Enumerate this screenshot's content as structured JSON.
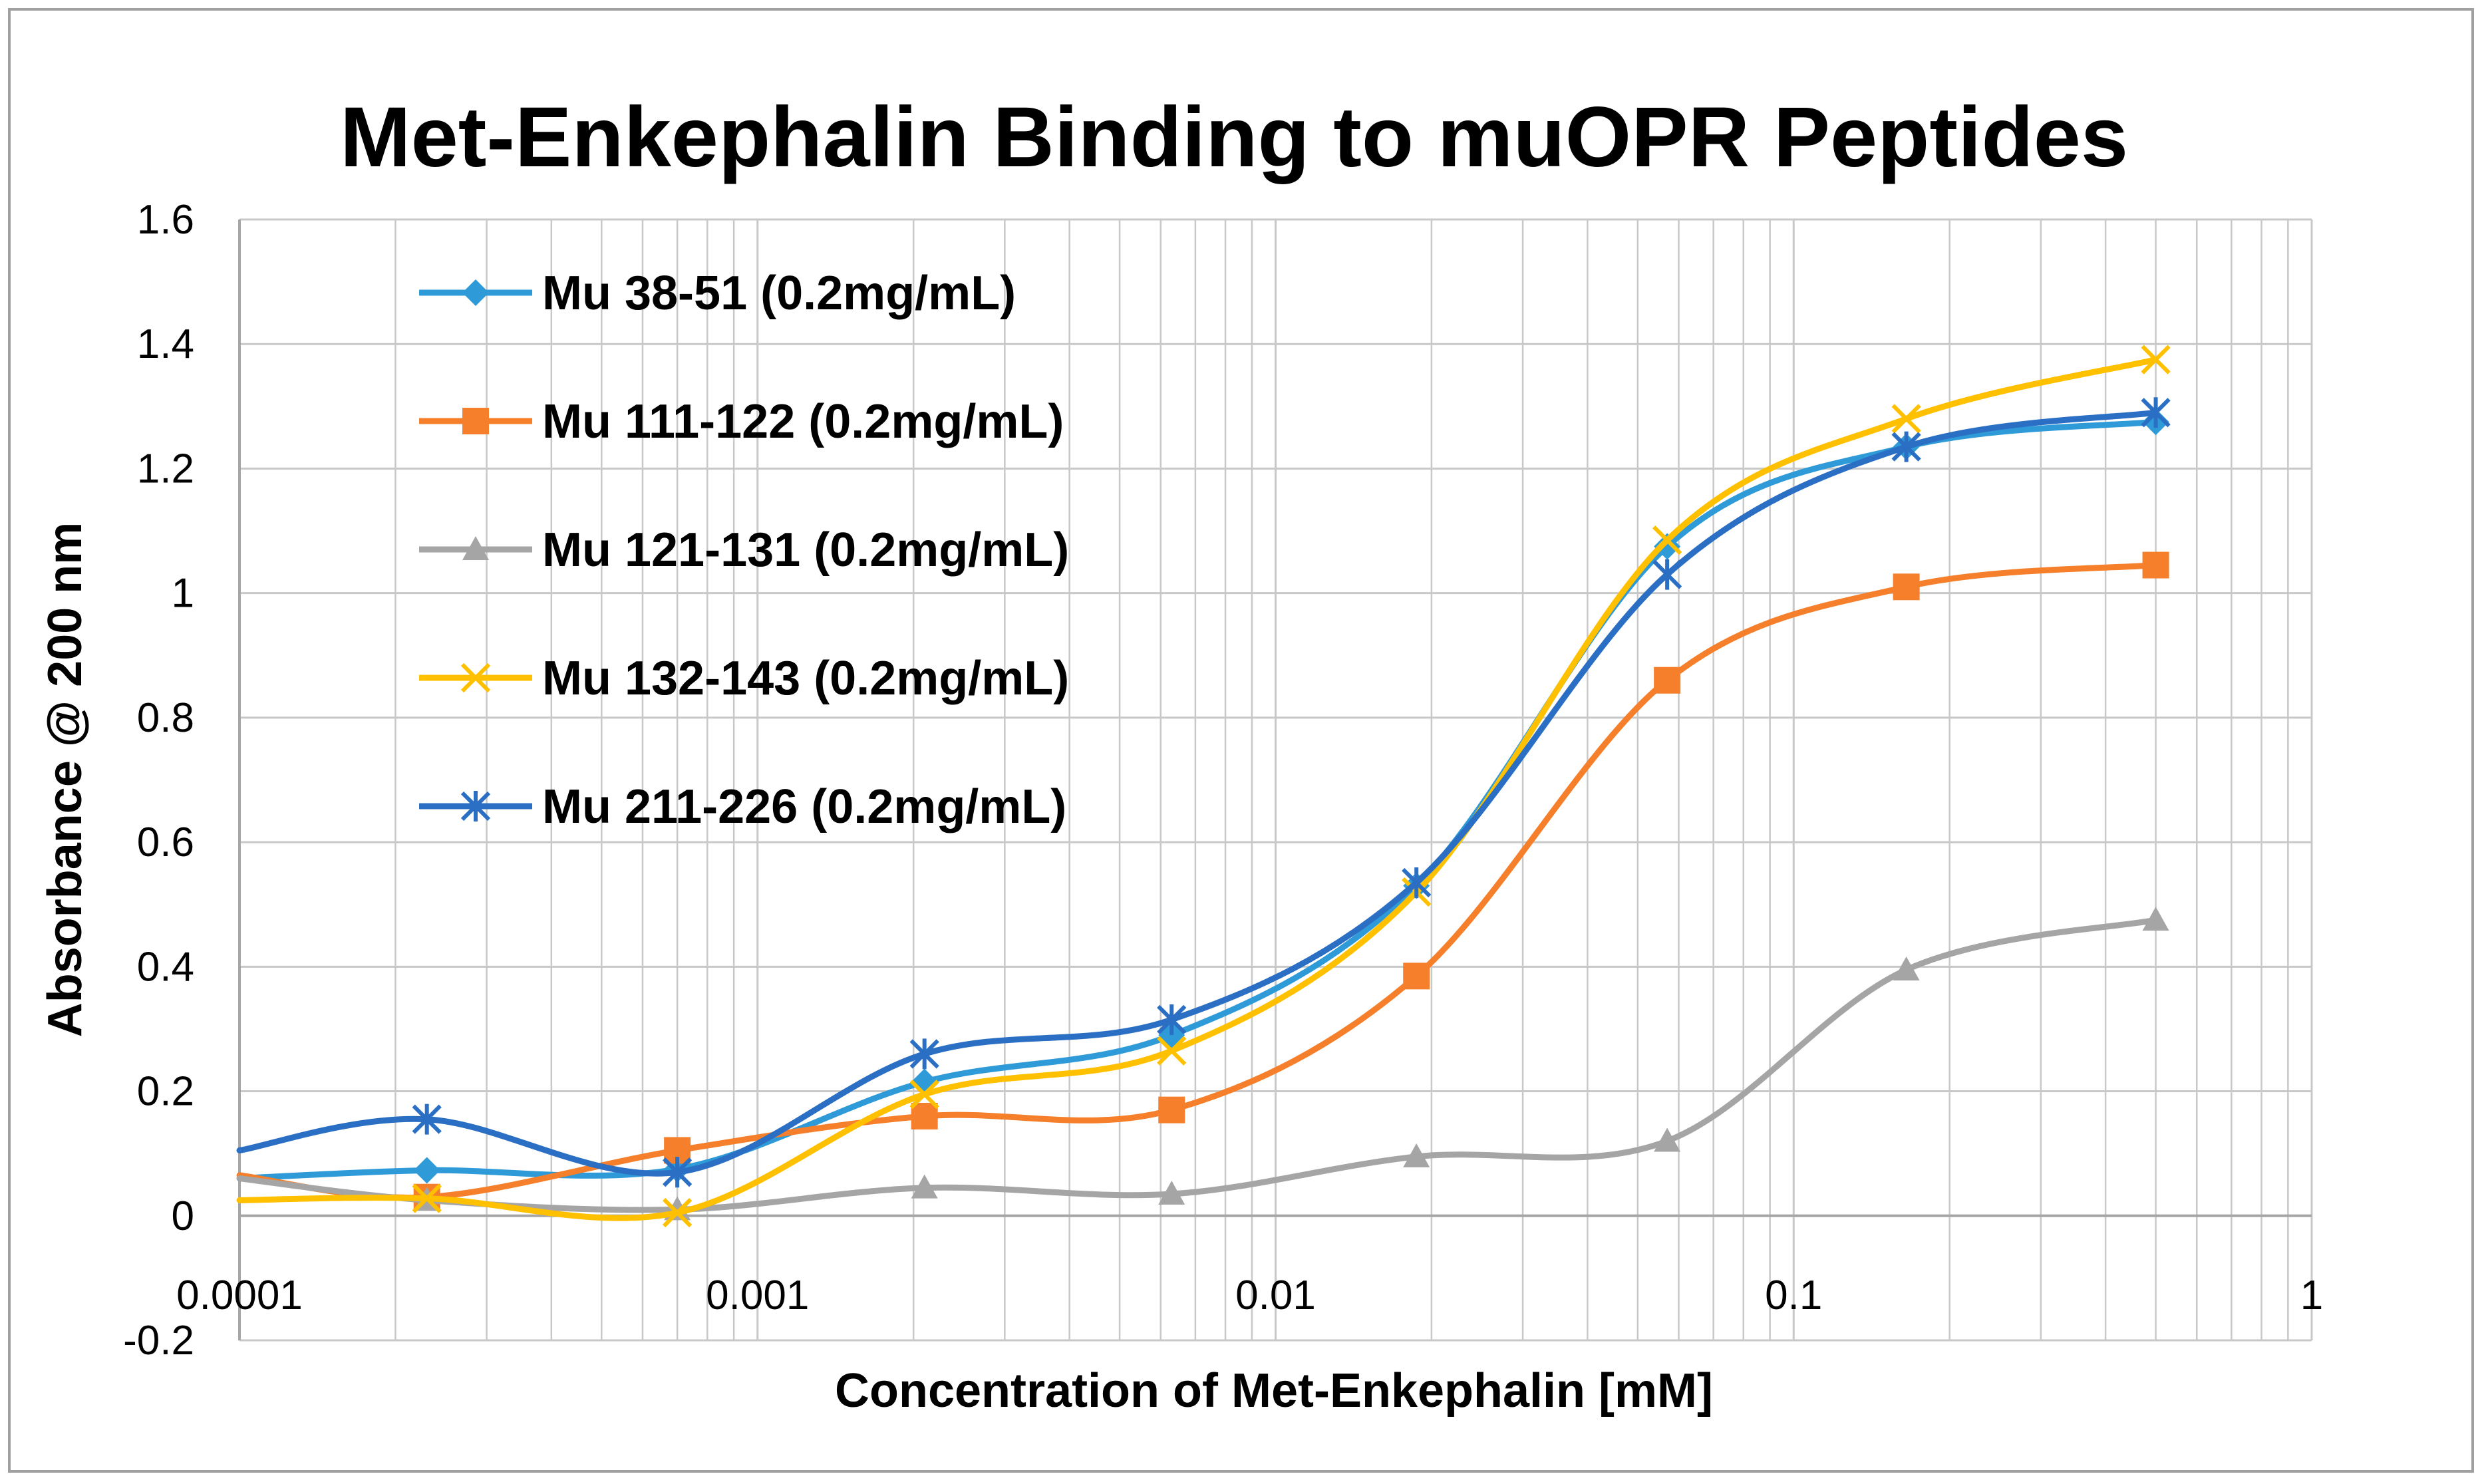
{
  "chart_data": {
    "type": "line",
    "title": "Met-Enkephalin Binding to muOPR Peptides",
    "xlabel": "Concentration of Met-Enkephalin [mM]",
    "ylabel": "Absorbance @ 200 nm",
    "xscale": "log",
    "xlim": [
      0.0001,
      1
    ],
    "ylim": [
      -0.2,
      1.6
    ],
    "x_ticks": [
      "0.0001",
      "0.001",
      "0.01",
      "0.1",
      "1"
    ],
    "y_ticks": [
      "-0.2",
      "0",
      "0.2",
      "0.4",
      "0.6",
      "0.8",
      "1",
      "1.2",
      "1.4",
      "1.6"
    ],
    "grid": true,
    "legend_position": "top-left",
    "series": [
      {
        "name": "Mu 38-51 (0.2mg/mL)",
        "color": "#2E9AD8",
        "marker": "diamond",
        "points": [
          [
            0.0001,
            0.06
          ],
          [
            0.00023,
            0.073
          ],
          [
            0.0007,
            0.075
          ],
          [
            0.0021,
            0.215
          ],
          [
            0.0063,
            0.29
          ],
          [
            0.0187,
            0.53
          ],
          [
            0.057,
            1.075
          ],
          [
            0.165,
            1.235
          ],
          [
            0.5,
            1.275
          ]
        ]
      },
      {
        "name": "Mu 111-122 (0.2mg/mL)",
        "color": "#F57F2A",
        "marker": "square",
        "points": [
          [
            0.0001,
            0.065
          ],
          [
            0.00023,
            0.03
          ],
          [
            0.0007,
            0.105
          ],
          [
            0.0021,
            0.16
          ],
          [
            0.0063,
            0.17
          ],
          [
            0.0187,
            0.385
          ],
          [
            0.057,
            0.86
          ],
          [
            0.165,
            1.01
          ],
          [
            0.5,
            1.045
          ]
        ]
      },
      {
        "name": "Mu 121-131 (0.2mg/mL)",
        "color": "#A5A5A5",
        "marker": "triangle",
        "points": [
          [
            0.0001,
            0.06
          ],
          [
            0.00023,
            0.025
          ],
          [
            0.0007,
            0.01
          ],
          [
            0.0021,
            0.045
          ],
          [
            0.0063,
            0.035
          ],
          [
            0.0187,
            0.095
          ],
          [
            0.057,
            0.12
          ],
          [
            0.165,
            0.395
          ],
          [
            0.5,
            0.475
          ]
        ]
      },
      {
        "name": "Mu 132-143 (0.2mg/mL)",
        "color": "#FFC000",
        "marker": "x",
        "points": [
          [
            0.0001,
            0.025
          ],
          [
            0.00023,
            0.028
          ],
          [
            0.0007,
            0.005
          ],
          [
            0.0021,
            0.195
          ],
          [
            0.0063,
            0.265
          ],
          [
            0.0187,
            0.52
          ],
          [
            0.057,
            1.085
          ],
          [
            0.165,
            1.28
          ],
          [
            0.5,
            1.375
          ]
        ]
      },
      {
        "name": "Mu 211-226 (0.2mg/mL)",
        "color": "#2A6FC4",
        "marker": "star",
        "points": [
          [
            0.0001,
            0.105
          ],
          [
            0.00023,
            0.155
          ],
          [
            0.0007,
            0.07
          ],
          [
            0.0021,
            0.26
          ],
          [
            0.0063,
            0.315
          ],
          [
            0.0187,
            0.535
          ],
          [
            0.057,
            1.03
          ],
          [
            0.165,
            1.235
          ],
          [
            0.5,
            1.29
          ]
        ]
      }
    ]
  }
}
